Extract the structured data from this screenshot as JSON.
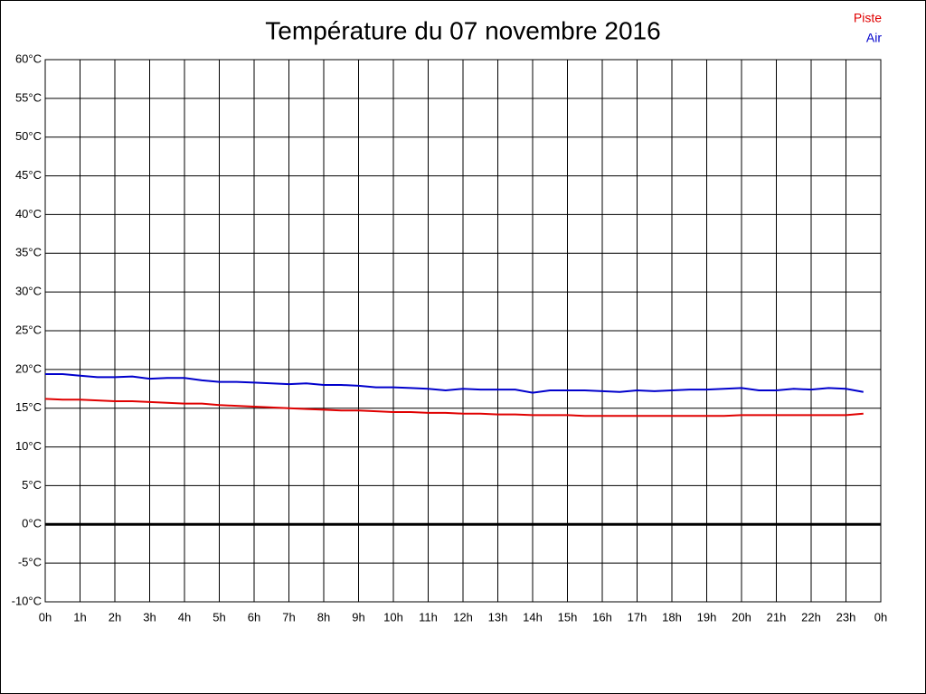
{
  "chart_data": {
    "type": "line",
    "title": "Température du 07 novembre 2016",
    "x": [
      0,
      0.5,
      1,
      1.5,
      2,
      2.5,
      3,
      3.5,
      4,
      4.5,
      5,
      5.5,
      6,
      6.5,
      7,
      7.5,
      8,
      8.5,
      9,
      9.5,
      10,
      10.5,
      11,
      11.5,
      12,
      12.5,
      13,
      13.5,
      14,
      14.5,
      15,
      15.5,
      16,
      16.5,
      17,
      17.5,
      18,
      18.5,
      19,
      19.5,
      20,
      20.5,
      21,
      21.5,
      22,
      22.5,
      23,
      23.5
    ],
    "series": [
      {
        "name": "Piste",
        "color": "#e00000",
        "values": [
          16.2,
          16.1,
          16.1,
          16.0,
          15.9,
          15.9,
          15.8,
          15.7,
          15.6,
          15.6,
          15.4,
          15.3,
          15.2,
          15.1,
          15.0,
          14.9,
          14.8,
          14.7,
          14.7,
          14.6,
          14.5,
          14.5,
          14.4,
          14.4,
          14.3,
          14.3,
          14.2,
          14.2,
          14.1,
          14.1,
          14.1,
          14.0,
          14.0,
          14.0,
          14.0,
          14.0,
          14.0,
          14.0,
          14.0,
          14.0,
          14.1,
          14.1,
          14.1,
          14.1,
          14.1,
          14.1,
          14.1,
          14.3
        ]
      },
      {
        "name": "Air",
        "color": "#0000cc",
        "values": [
          19.4,
          19.4,
          19.2,
          19.0,
          19.0,
          19.1,
          18.8,
          18.9,
          18.9,
          18.6,
          18.4,
          18.4,
          18.3,
          18.2,
          18.1,
          18.2,
          18.0,
          18.0,
          17.9,
          17.7,
          17.7,
          17.6,
          17.5,
          17.3,
          17.5,
          17.4,
          17.4,
          17.4,
          17.0,
          17.3,
          17.3,
          17.3,
          17.2,
          17.1,
          17.3,
          17.2,
          17.3,
          17.4,
          17.4,
          17.5,
          17.6,
          17.3,
          17.3,
          17.5,
          17.4,
          17.6,
          17.5,
          17.1
        ]
      }
    ],
    "xlim": [
      0,
      24
    ],
    "xticks": [
      {
        "value": 0,
        "label": "0h"
      },
      {
        "value": 1,
        "label": "1h"
      },
      {
        "value": 2,
        "label": "2h"
      },
      {
        "value": 3,
        "label": "3h"
      },
      {
        "value": 4,
        "label": "4h"
      },
      {
        "value": 5,
        "label": "5h"
      },
      {
        "value": 6,
        "label": "6h"
      },
      {
        "value": 7,
        "label": "7h"
      },
      {
        "value": 8,
        "label": "8h"
      },
      {
        "value": 9,
        "label": "9h"
      },
      {
        "value": 10,
        "label": "10h"
      },
      {
        "value": 11,
        "label": "11h"
      },
      {
        "value": 12,
        "label": "12h"
      },
      {
        "value": 13,
        "label": "13h"
      },
      {
        "value": 14,
        "label": "14h"
      },
      {
        "value": 15,
        "label": "15h"
      },
      {
        "value": 16,
        "label": "16h"
      },
      {
        "value": 17,
        "label": "17h"
      },
      {
        "value": 18,
        "label": "18h"
      },
      {
        "value": 19,
        "label": "19h"
      },
      {
        "value": 20,
        "label": "20h"
      },
      {
        "value": 21,
        "label": "21h"
      },
      {
        "value": 22,
        "label": "22h"
      },
      {
        "value": 23,
        "label": "23h"
      },
      {
        "value": 24,
        "label": "0h"
      }
    ],
    "ylim": [
      -10,
      60
    ],
    "yticks": [
      {
        "value": -10,
        "label": "-10°C"
      },
      {
        "value": -5,
        "label": "-5°C"
      },
      {
        "value": 0,
        "label": "0°C"
      },
      {
        "value": 5,
        "label": "5°C"
      },
      {
        "value": 10,
        "label": "10°C"
      },
      {
        "value": 15,
        "label": "15°C"
      },
      {
        "value": 20,
        "label": "20°C"
      },
      {
        "value": 25,
        "label": "25°C"
      },
      {
        "value": 30,
        "label": "30°C"
      },
      {
        "value": 35,
        "label": "35°C"
      },
      {
        "value": 40,
        "label": "40°C"
      },
      {
        "value": 45,
        "label": "45°C"
      },
      {
        "value": 50,
        "label": "50°C"
      },
      {
        "value": 55,
        "label": "55°C"
      },
      {
        "value": 60,
        "label": "60°C"
      }
    ],
    "grid": true,
    "legend": "top-right"
  }
}
